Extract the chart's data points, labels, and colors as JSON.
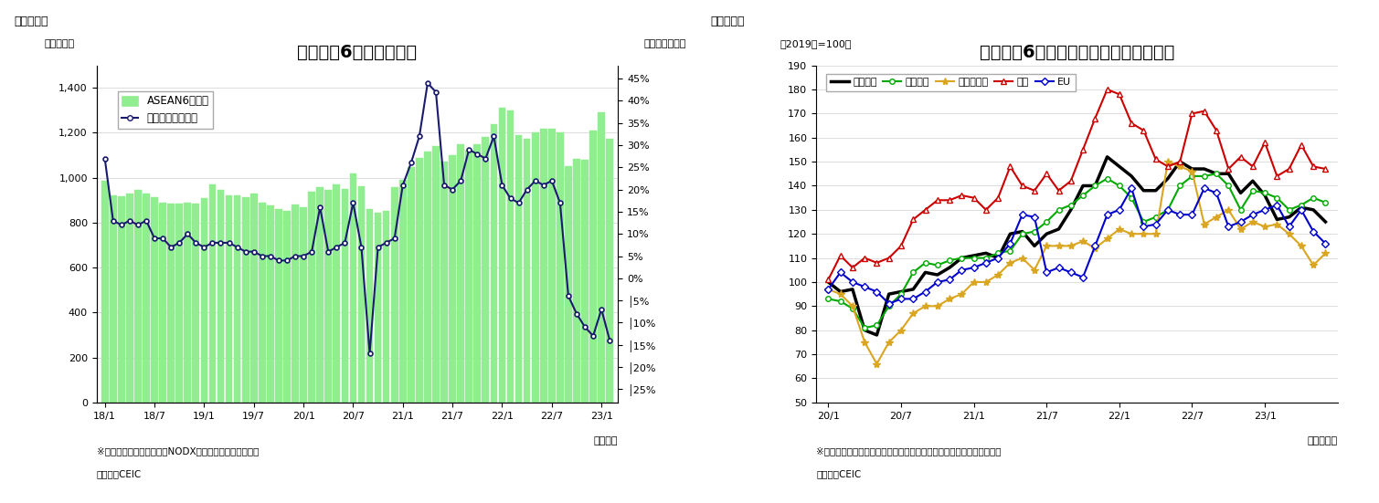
{
  "fig1": {
    "title": "アセアン6カ国の輸出額",
    "ylabel_left": "（億ドル）",
    "ylabel_right": "（前年同月比）",
    "xlabel": "（年月）",
    "note1": "※シンガポールの輸出額はNODX（石油と再輸出除く）。",
    "note2": "（資料）CEIC",
    "legend_label1": "ASEAN6カ国計",
    "legend_label2": "増加率（右目盛）",
    "bar_color": "#90EE90",
    "line_color": "#1a1a6e",
    "ylim_left": [
      0,
      1500
    ],
    "ylim_right": [
      -0.28,
      0.48
    ],
    "yticks_left": [
      0,
      200,
      400,
      600,
      800,
      1000,
      1200,
      1400
    ],
    "yticks_right_vals": [
      0.45,
      0.4,
      0.35,
      0.3,
      0.25,
      0.2,
      0.15,
      0.1,
      0.05,
      0.0,
      -0.05,
      -0.1,
      -0.15,
      -0.2,
      -0.25
    ],
    "yticks_right_labels": [
      "45%",
      "40%",
      "35%",
      "30%",
      "25%",
      "20%",
      "15%",
      "10%",
      "5%",
      "0%",
      "│5%",
      "│10%",
      "│15%",
      "│20%",
      "│25%"
    ],
    "x_labels": [
      "18/1",
      "18/7",
      "19/1",
      "19/7",
      "20/1",
      "20/7",
      "21/1",
      "21/7",
      "22/1",
      "22/7",
      "23/1"
    ],
    "bar_values": [
      988,
      921,
      919,
      930,
      946,
      930,
      912,
      887,
      886,
      885,
      887,
      885,
      910,
      970,
      946,
      923,
      921,
      913,
      929,
      889,
      876,
      861,
      853,
      880,
      870,
      936,
      959,
      947,
      972,
      951,
      1020,
      961,
      862,
      843,
      854,
      958,
      990,
      1047,
      1090,
      1117,
      1139,
      1071,
      1099,
      1151,
      1120,
      1150,
      1180,
      1240,
      1310,
      1300,
      1190,
      1175,
      1200,
      1220,
      1220,
      1200,
      1050,
      1085,
      1080,
      1210,
      1290,
      1175
    ],
    "line_values": [
      0.27,
      0.13,
      0.12,
      0.13,
      0.12,
      0.13,
      0.09,
      0.09,
      0.07,
      0.08,
      0.1,
      0.08,
      0.07,
      0.08,
      0.08,
      0.08,
      0.07,
      0.06,
      0.06,
      0.05,
      0.05,
      0.04,
      0.04,
      0.05,
      0.05,
      0.06,
      0.16,
      0.06,
      0.07,
      0.08,
      0.17,
      0.07,
      -0.17,
      0.07,
      0.08,
      0.09,
      0.21,
      0.26,
      0.32,
      0.44,
      0.42,
      0.21,
      0.2,
      0.22,
      0.29,
      0.28,
      0.27,
      0.32,
      0.21,
      0.18,
      0.17,
      0.2,
      0.22,
      0.21,
      0.22,
      0.17,
      -0.04,
      -0.08,
      -0.11,
      -0.13,
      -0.07,
      -0.14
    ],
    "x_tick_positions": [
      0,
      6,
      12,
      18,
      24,
      30,
      36,
      42,
      48,
      54,
      60
    ]
  },
  "fig2": {
    "title": "アセアン6ヵ国　仕向け地別の輸出動向",
    "ylabel": "（2019年=100）",
    "xlabel": "（年／月）",
    "note1": "※シンガポールは地場輸出、インドネシアは非石油ガス輸出より算出。",
    "note2": "（資料）CEIC",
    "ylim": [
      50,
      190
    ],
    "yticks": [
      50,
      60,
      70,
      80,
      90,
      100,
      110,
      120,
      130,
      140,
      150,
      160,
      170,
      180,
      190
    ],
    "x_labels": [
      "20/1",
      "20/7",
      "21/1",
      "21/7",
      "22/1",
      "22/7",
      "23/1"
    ],
    "x_tick_positions": [
      0,
      6,
      12,
      18,
      24,
      30,
      36
    ],
    "series": {
      "輸出全体": {
        "color": "#000000",
        "linewidth": 2.5,
        "marker": "None",
        "markersize": 0,
        "values": [
          100,
          96,
          97,
          80,
          78,
          95,
          96,
          97,
          104,
          103,
          106,
          110,
          111,
          112,
          110,
          120,
          121,
          115,
          120,
          122,
          130,
          140,
          140,
          152,
          148,
          144,
          138,
          138,
          143,
          150,
          147,
          147,
          145,
          145,
          137,
          142,
          136,
          126,
          127,
          131,
          130,
          125
        ]
      },
      "東アジア": {
        "color": "#00AA00",
        "linewidth": 1.5,
        "marker": "o",
        "markersize": 4,
        "values": [
          93,
          92,
          89,
          81,
          82,
          90,
          95,
          104,
          108,
          107,
          109,
          110,
          110,
          110,
          112,
          113,
          120,
          121,
          125,
          130,
          132,
          136,
          140,
          143,
          140,
          135,
          125,
          127,
          130,
          140,
          144,
          144,
          145,
          140,
          130,
          138,
          137,
          135,
          130,
          132,
          135,
          133
        ]
      },
      "東南アジア": {
        "color": "#DAA520",
        "linewidth": 1.5,
        "marker": "*",
        "markersize": 6,
        "values": [
          97,
          95,
          90,
          75,
          66,
          75,
          80,
          87,
          90,
          90,
          93,
          95,
          100,
          100,
          103,
          108,
          110,
          105,
          115,
          115,
          115,
          117,
          114,
          118,
          122,
          120,
          120,
          120,
          150,
          148,
          146,
          124,
          127,
          130,
          122,
          125,
          123,
          124,
          120,
          115,
          107,
          112
        ]
      },
      "北米": {
        "color": "#CC0000",
        "linewidth": 1.5,
        "marker": "^",
        "markersize": 4,
        "values": [
          101,
          111,
          106,
          110,
          108,
          110,
          115,
          126,
          130,
          134,
          134,
          136,
          135,
          130,
          135,
          148,
          140,
          138,
          145,
          138,
          142,
          155,
          168,
          180,
          178,
          166,
          163,
          151,
          148,
          150,
          170,
          171,
          163,
          147,
          152,
          148,
          158,
          144,
          147,
          157,
          148,
          147
        ]
      },
      "EU": {
        "color": "#0000CC",
        "linewidth": 1.5,
        "marker": "D",
        "markersize": 4,
        "values": [
          97,
          104,
          100,
          98,
          96,
          91,
          93,
          93,
          96,
          100,
          101,
          105,
          106,
          108,
          110,
          116,
          128,
          127,
          104,
          106,
          104,
          102,
          115,
          128,
          130,
          139,
          123,
          124,
          130,
          128,
          128,
          139,
          137,
          123,
          125,
          128,
          130,
          132,
          123,
          130,
          121,
          116
        ]
      }
    }
  },
  "background_color": "#ffffff",
  "title_fontsize": 14
}
